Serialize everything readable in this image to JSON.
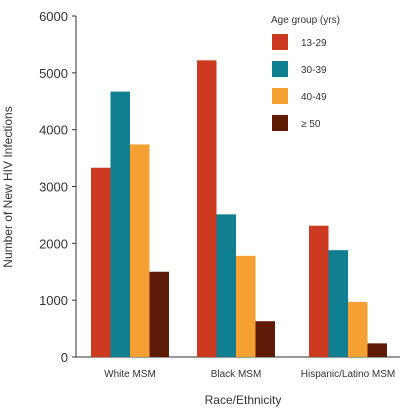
{
  "chart_data": {
    "type": "bar",
    "title": "",
    "xlabel": "Race/Ethnicity",
    "ylabel": "Number of New HIV Infections",
    "ylim": [
      0,
      6000
    ],
    "yticks": [
      "0",
      "1000",
      "2000",
      "3000",
      "4000",
      "5000",
      "6000"
    ],
    "categories": [
      "White MSM",
      "Black MSM",
      "Hispanic/Latino MSM"
    ],
    "legend": {
      "title": "Age group (yrs)",
      "placement": "top-right"
    },
    "grid": false,
    "series": [
      {
        "name": "13-29",
        "color": "#cc3a22",
        "values": [
          3330,
          5220,
          2310
        ]
      },
      {
        "name": "30-39",
        "color": "#117f92",
        "values": [
          4670,
          2510,
          1880
        ]
      },
      {
        "name": "40-49",
        "color": "#f5a033",
        "values": [
          3740,
          1780,
          970
        ]
      },
      {
        "name": "≥ 50",
        "color": "#5e1c06",
        "values": [
          1500,
          630,
          240
        ]
      }
    ]
  }
}
